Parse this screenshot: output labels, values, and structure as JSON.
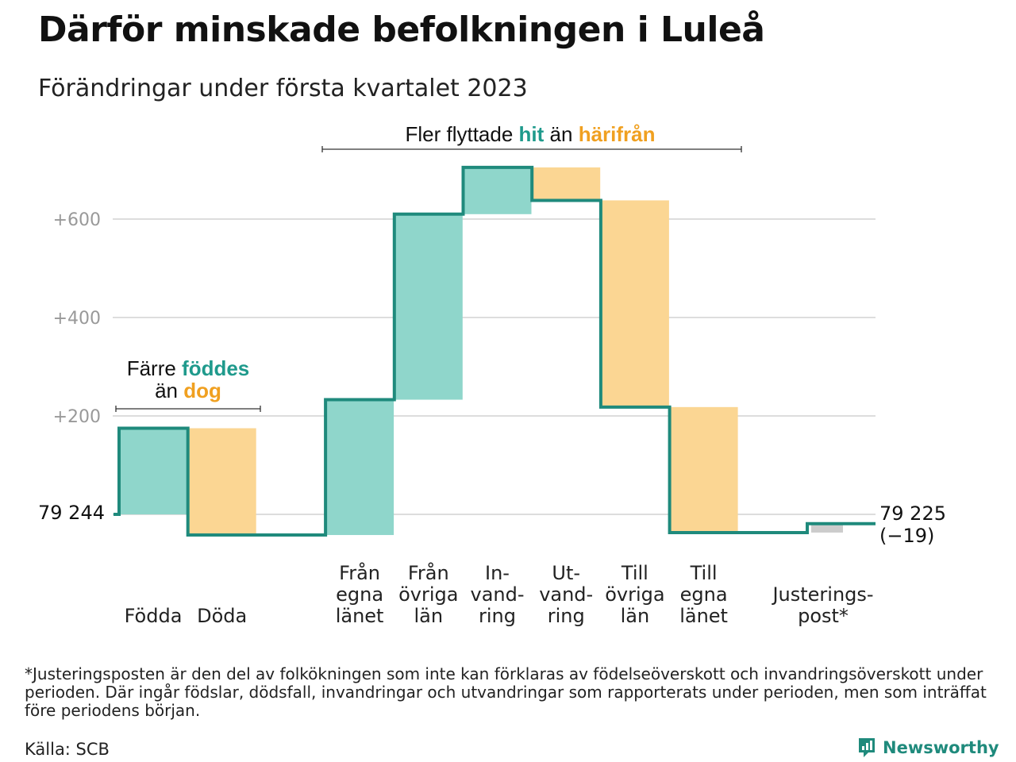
{
  "title": "Därför minskade befolkningen i Luleå",
  "subtitle": "Förändringar under första kvartalet 2023",
  "colors": {
    "increase": "#8fd6cb",
    "decrease": "#fbd693",
    "adjustment": "#cccccc",
    "line": "#1f8a7c",
    "accent_teal": "#1f9a8c",
    "accent_orange": "#f0a020",
    "grid": "#dddddd",
    "tick": "#999999"
  },
  "annotations": {
    "migration": {
      "pre": "Fler flyttade ",
      "hit": "hit",
      "mid": " än ",
      "harifran": "härifrån"
    },
    "births": {
      "pre": "Färre ",
      "foddes": "föddes",
      "mid": "än ",
      "dog": "dog"
    }
  },
  "chart_data": {
    "type": "waterfall",
    "title": "Därför minskade befolkningen i Luleå",
    "subtitle": "Förändringar under första kvartalet 2023",
    "start_value": 79244,
    "start_label": "79 244",
    "end_label": "79 225",
    "end_change_label": "(−19)",
    "ylim": [
      -50,
      760
    ],
    "yticks": [
      200,
      400,
      600
    ],
    "ytick_labels": [
      "+200",
      "+400",
      "+600"
    ],
    "grid": true,
    "steps": [
      {
        "name": "Födda",
        "label_lines": [
          "Födda"
        ],
        "delta": 175,
        "cumulative": 175,
        "kind": "increase"
      },
      {
        "name": "Döda",
        "label_lines": [
          "Döda"
        ],
        "delta": -217,
        "cumulative": -42,
        "kind": "decrease"
      },
      {
        "name": "Från egna länet",
        "label_lines": [
          "Från",
          "egna",
          "länet"
        ],
        "delta": 275,
        "cumulative": 233,
        "kind": "increase"
      },
      {
        "name": "Från övriga län",
        "label_lines": [
          "Från",
          "övriga",
          "län"
        ],
        "delta": 377,
        "cumulative": 610,
        "kind": "increase"
      },
      {
        "name": "Invandring",
        "label_lines": [
          "In-",
          "vand-",
          "ring"
        ],
        "delta": 95,
        "cumulative": 705,
        "kind": "increase"
      },
      {
        "name": "Utvandring",
        "label_lines": [
          "Ut-",
          "vand-",
          "ring"
        ],
        "delta": -67,
        "cumulative": 638,
        "kind": "decrease"
      },
      {
        "name": "Till övriga län",
        "label_lines": [
          "Till",
          "övriga",
          "län"
        ],
        "delta": -420,
        "cumulative": 218,
        "kind": "decrease"
      },
      {
        "name": "Till egna länet",
        "label_lines": [
          "Till",
          "egna",
          "länet"
        ],
        "delta": -255,
        "cumulative": -37,
        "kind": "decrease"
      },
      {
        "name": "Justeringspost*",
        "label_lines": [
          "Justerings-",
          "post*"
        ],
        "delta": 18,
        "cumulative": -19,
        "kind": "adjustment"
      }
    ]
  },
  "footnote": "*Justeringsposten är den del av folkökningen som inte kan förklaras av födelseöverskott och invandringsöverskott under perioden. Där ingår födslar, dödsfall, invandringar och utvandringar som rapporterats under perioden, men som inträffat före periodens början.",
  "source": "Källa: SCB",
  "brand": "Newsworthy"
}
